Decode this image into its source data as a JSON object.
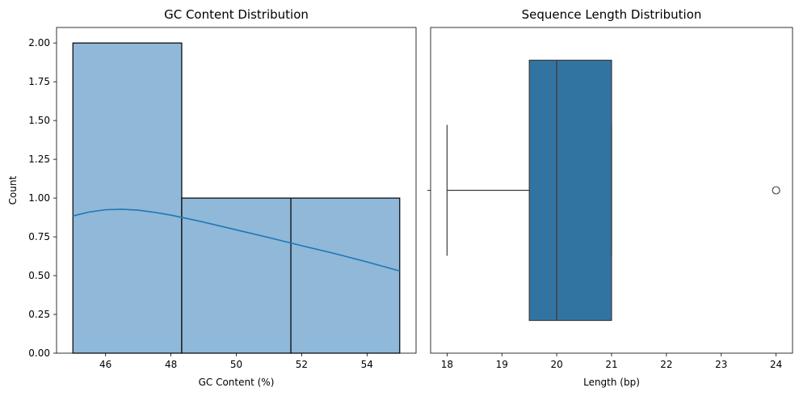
{
  "chart_data": [
    {
      "type": "histogram",
      "title": "GC Content Distribution",
      "xlabel": "GC Content (%)",
      "ylabel": "Count",
      "xlim": [
        44.5,
        55.5
      ],
      "ylim": [
        0,
        2.1
      ],
      "bins": [
        {
          "x0": 45.0,
          "x1": 48.33,
          "count": 2
        },
        {
          "x0": 48.33,
          "x1": 51.67,
          "count": 1
        },
        {
          "x0": 51.67,
          "x1": 55.0,
          "count": 1
        }
      ],
      "kde": {
        "x": [
          45,
          45.5,
          46,
          46.5,
          47,
          47.5,
          48,
          48.5,
          49,
          50,
          51,
          52,
          53,
          54,
          55
        ],
        "y": [
          0.885,
          0.91,
          0.925,
          0.928,
          0.922,
          0.908,
          0.89,
          0.868,
          0.845,
          0.795,
          0.745,
          0.693,
          0.643,
          0.588,
          0.53
        ]
      },
      "xticks": [
        46,
        48,
        50,
        52,
        54
      ],
      "xtick_labels": [
        "46",
        "48",
        "50",
        "52",
        "54"
      ],
      "yticks": [
        0,
        0.25,
        0.5,
        0.75,
        1.0,
        1.25,
        1.5,
        1.75,
        2.0
      ],
      "ytick_labels": [
        "0.00",
        "0.25",
        "0.50",
        "0.75",
        "1.00",
        "1.25",
        "1.50",
        "1.75",
        "2.00"
      ],
      "colors": {
        "bar_fill": "#8fb8d9",
        "bar_edge": "#000000",
        "kde_line": "#1f77b4"
      },
      "grid": false
    },
    {
      "type": "box",
      "title": "Sequence Length Distribution",
      "xlabel": "Length (bp)",
      "xlim": [
        17.7,
        24.3
      ],
      "box": {
        "whisker_low": 18,
        "q1": 19.5,
        "median": 20,
        "q3": 21,
        "whisker_high": 21
      },
      "outliers": [
        24
      ],
      "xticks": [
        18,
        19,
        20,
        21,
        22,
        23,
        24
      ],
      "xtick_labels": [
        "18",
        "19",
        "20",
        "21",
        "22",
        "23",
        "24"
      ],
      "colors": {
        "box_fill": "#3274a1",
        "lines": "#3d3d3d"
      },
      "grid": false
    }
  ]
}
